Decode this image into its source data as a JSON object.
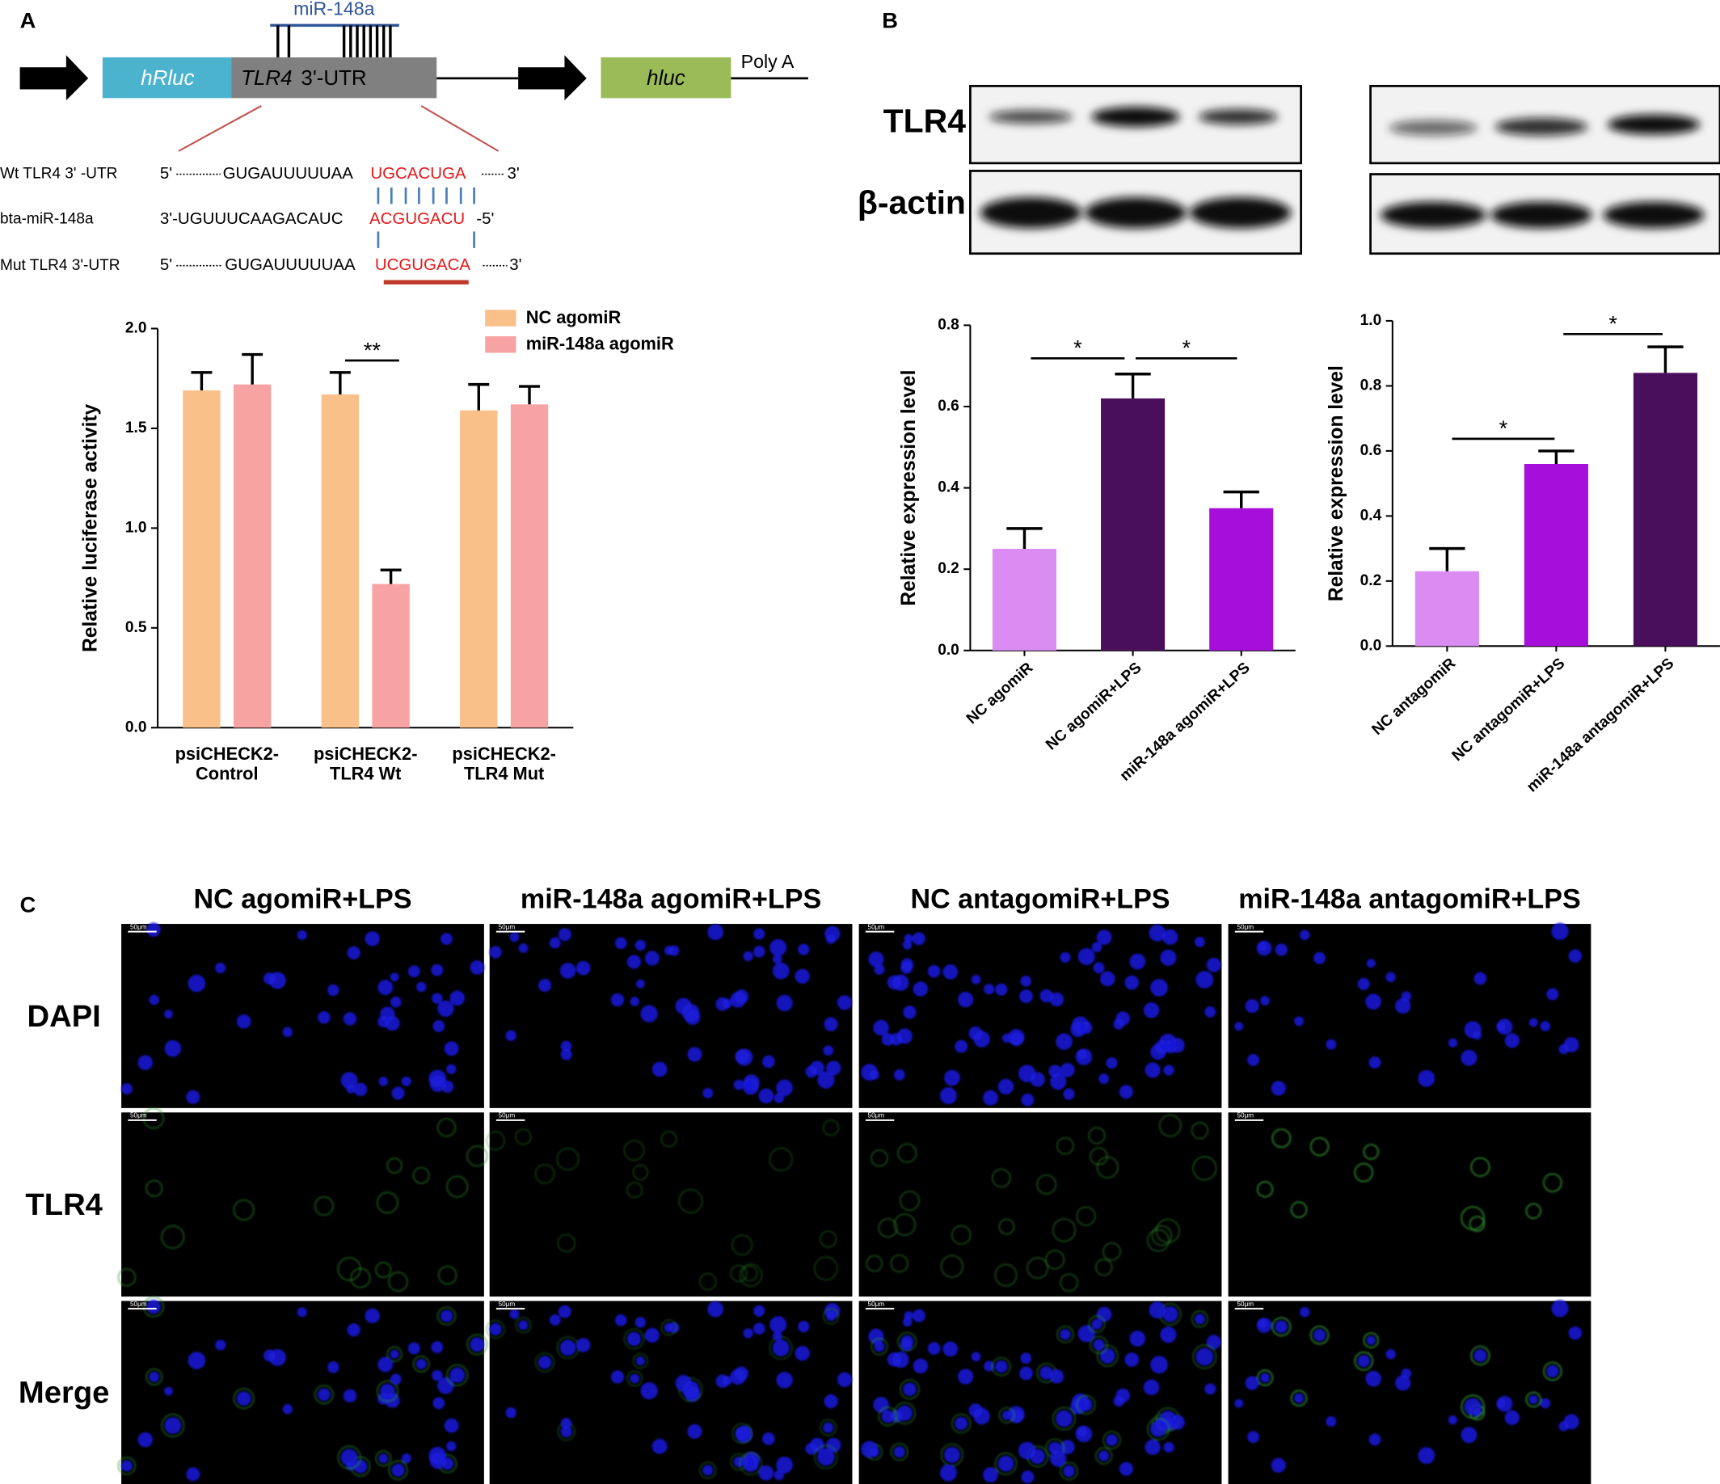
{
  "panel_labels": [
    "A",
    "B",
    "C"
  ],
  "diagram": {
    "mirna": "miR-148a",
    "hrluc": "hRluc",
    "utr_gene": "TLR4",
    "utr_suffix": "3'-UTR",
    "hluc": "hluc",
    "poly_a": "Poly A",
    "sequences": [
      {
        "label": "Wt TLR4 3' -UTR",
        "parts": [
          "5'",
          "GUGAUUUUUAA",
          "UGCACUGA",
          "3'"
        ]
      },
      {
        "label": "bta-miR-148a",
        "parts": [
          "3'-UGUUUCAAGACAUC",
          "ACGUGACU",
          "-5'"
        ]
      },
      {
        "label": "Mut TLR4 3'-UTR",
        "parts": [
          "5'",
          "GUGAUUUUUAA",
          "UCGUGACA",
          "3'"
        ]
      }
    ]
  },
  "western_blot": {
    "rows": [
      "TLR4",
      "β-actin"
    ]
  },
  "chart_data": [
    {
      "type": "bar",
      "y_label": "Relative luciferase  activity",
      "categories": [
        [
          "psiCHECK2-",
          "Control"
        ],
        [
          "psiCHECK2-",
          "TLR4 Wt"
        ],
        [
          "psiCHECK2-",
          "TLR4 Mut"
        ]
      ],
      "series": [
        {
          "name": "NC agomiR",
          "color": "#f9c08a",
          "values": [
            1.69,
            1.67,
            1.59
          ],
          "errors": [
            0.09,
            0.11,
            0.13
          ]
        },
        {
          "name": "miR-148a agomiR",
          "color": "#f8a3a3",
          "values": [
            1.72,
            0.72,
            1.62
          ],
          "errors": [
            0.15,
            0.07,
            0.09
          ]
        }
      ],
      "ylim": [
        0,
        2
      ],
      "yticks": [
        {
          "value": 0,
          "label": "0.0"
        },
        0.5,
        {
          "value": 1,
          "label": "1.0"
        },
        1.5,
        {
          "value": 2,
          "label": "2.0"
        }
      ],
      "legend": "upper right",
      "annotations": [
        "**"
      ]
    },
    {
      "type": "bar",
      "y_label": "Relative expression level",
      "categories": [
        "NC agomiR",
        "NC agomiR+LPS",
        "miR-148a agomiR+LPS"
      ],
      "values": [
        0.25,
        0.62,
        0.35
      ],
      "errors": [
        0.05,
        0.06,
        0.04
      ],
      "colors": [
        "#da8cf2",
        "#4a0f5c",
        "#a60fd9"
      ],
      "ylim": [
        0,
        0.8
      ],
      "yticks": [
        {
          "value": 0,
          "label": "0.0"
        },
        0.2,
        0.4,
        0.6,
        0.8
      ],
      "annotations": [
        "*",
        "*"
      ]
    },
    {
      "type": "bar",
      "y_label": "Relative expression level",
      "categories": [
        "NC antagomiR",
        "NC antagomiR+LPS",
        "miR-148a antagomiR+LPS"
      ],
      "values": [
        0.23,
        0.56,
        0.84
      ],
      "errors": [
        0.07,
        0.04,
        0.08
      ],
      "colors": [
        "#da8cf2",
        "#a60fd9",
        "#4a0f5c"
      ],
      "ylim": [
        0,
        1
      ],
      "yticks": [
        {
          "value": 0,
          "label": "0.0"
        },
        0.2,
        0.4,
        0.6,
        0.8,
        {
          "value": 1,
          "label": "1.0"
        }
      ],
      "annotations": [
        "*",
        "*"
      ]
    }
  ],
  "immunofluorescence": {
    "columns": [
      "NC agomiR+LPS",
      "miR-148a agomiR+LPS",
      "NC antagomiR+LPS",
      "miR-148a antagomiR+LPS"
    ],
    "rows": [
      "DAPI",
      "TLR4",
      "Merge"
    ],
    "scale_bar": "50μm"
  }
}
